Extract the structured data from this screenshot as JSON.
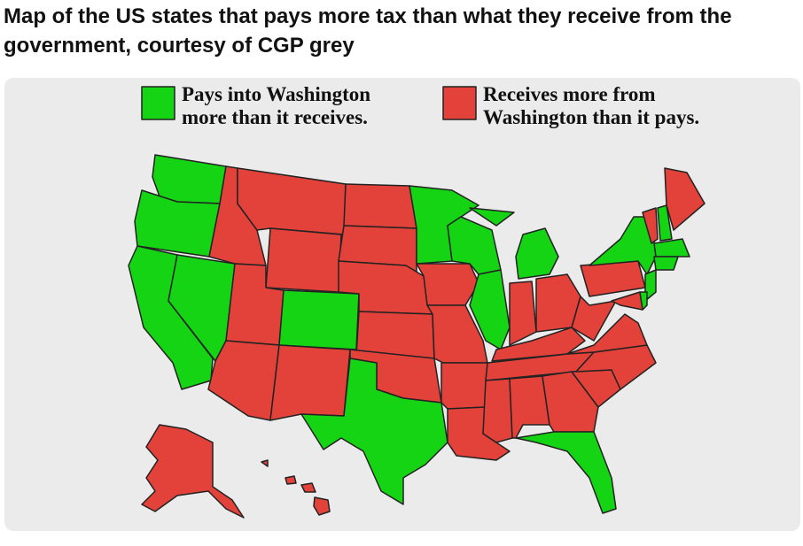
{
  "post": {
    "title": "Map of the US states that pays more tax than what they receive from the government, courtesy of CGP grey"
  },
  "legend": [
    {
      "lines": [
        "Pays into Washington",
        "more than it receives."
      ]
    },
    {
      "lines": [
        "Receives more from",
        "Washington than it pays."
      ]
    }
  ]
}
